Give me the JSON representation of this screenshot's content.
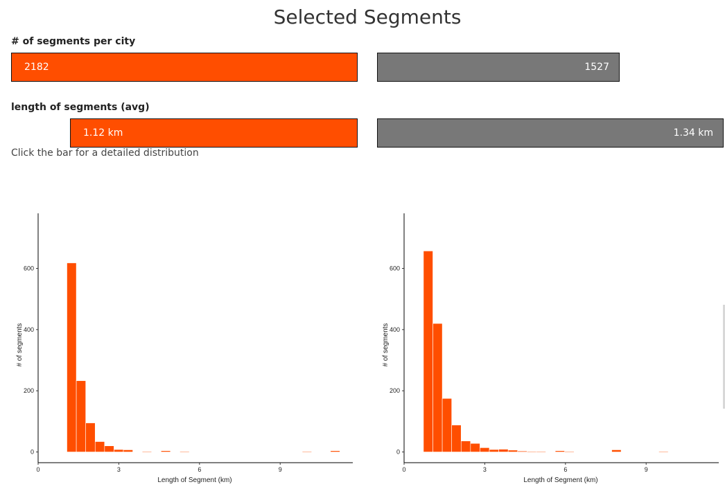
{
  "title": "Selected Segments",
  "sections": {
    "count": {
      "label": "# of segments per city",
      "bar_left": {
        "value": "2182",
        "fill_fraction": 1.0
      },
      "bar_right": {
        "value": "1527",
        "fill_fraction": 0.7
      }
    },
    "length": {
      "label": "length of segments (avg)",
      "bar_left": {
        "value": "1.12 km",
        "fill_fraction": 0.83
      },
      "bar_right": {
        "value": "1.34 km",
        "fill_fraction": 1.0
      }
    }
  },
  "hint": "Click the bar for a detailed distribution",
  "colors": {
    "accent": "#ff4e00",
    "neutral": "#787878"
  },
  "chart_data": [
    {
      "type": "bar",
      "xlabel": "Length of Segment (km)",
      "ylabel": "# of segments",
      "xticks": [
        0,
        3,
        6,
        9
      ],
      "yticks": [
        0,
        200,
        400,
        600
      ],
      "xlim": [
        0,
        11.7
      ],
      "ylim": [
        -35,
        780
      ],
      "bin_width": 0.35,
      "bins": [
        {
          "x": 1.07,
          "y": 618
        },
        {
          "x": 1.42,
          "y": 233
        },
        {
          "x": 1.77,
          "y": 95
        },
        {
          "x": 2.12,
          "y": 34
        },
        {
          "x": 2.47,
          "y": 20
        },
        {
          "x": 2.82,
          "y": 8
        },
        {
          "x": 3.17,
          "y": 7
        },
        {
          "x": 3.87,
          "y": 2
        },
        {
          "x": 4.57,
          "y": 4
        },
        {
          "x": 5.27,
          "y": 2
        },
        {
          "x": 9.82,
          "y": 2
        },
        {
          "x": 10.87,
          "y": 4
        }
      ]
    },
    {
      "type": "bar",
      "xlabel": "Length of Segment (km)",
      "ylabel": "# of segments",
      "xticks": [
        0,
        3,
        6,
        9
      ],
      "yticks": [
        0,
        200,
        400,
        600
      ],
      "xlim": [
        0,
        11.7
      ],
      "ylim": [
        -35,
        780
      ],
      "bin_width": 0.35,
      "bins": [
        {
          "x": 0.72,
          "y": 657
        },
        {
          "x": 1.07,
          "y": 420
        },
        {
          "x": 1.42,
          "y": 175
        },
        {
          "x": 1.77,
          "y": 88
        },
        {
          "x": 2.12,
          "y": 36
        },
        {
          "x": 2.47,
          "y": 28
        },
        {
          "x": 2.82,
          "y": 14
        },
        {
          "x": 3.17,
          "y": 8
        },
        {
          "x": 3.52,
          "y": 9
        },
        {
          "x": 3.87,
          "y": 6
        },
        {
          "x": 4.22,
          "y": 3
        },
        {
          "x": 4.57,
          "y": 2
        },
        {
          "x": 4.92,
          "y": 2
        },
        {
          "x": 5.62,
          "y": 4
        },
        {
          "x": 5.97,
          "y": 2
        },
        {
          "x": 7.72,
          "y": 7
        },
        {
          "x": 9.47,
          "y": 2
        }
      ]
    }
  ]
}
